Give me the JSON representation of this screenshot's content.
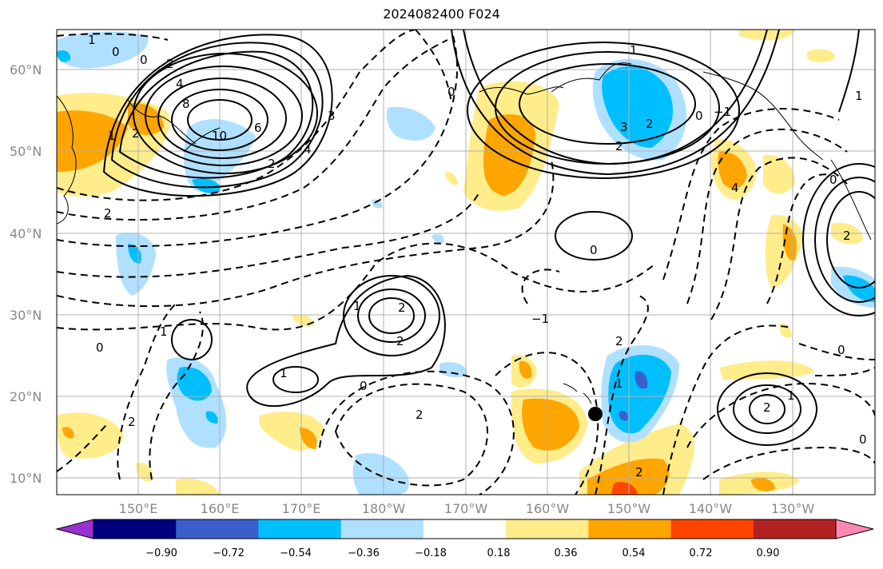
{
  "title": "2024082400 F024",
  "lat_labels": [
    "60°N",
    "50°N",
    "40°N",
    "30°N",
    "20°N",
    "10°N"
  ],
  "lon_labels": [
    "150°E",
    "160°E",
    "170°E",
    "180°W",
    "170°W",
    "160°W",
    "150°W",
    "140°W",
    "130°W"
  ],
  "colorbar": {
    "colors": [
      "#9b30d0",
      "#000080",
      "#3a5fcd",
      "#00bfff",
      "#b0e0ff",
      "#ffffff",
      "#ffec8b",
      "#ffa500",
      "#ff4500",
      "#b22222",
      "#ff88b0"
    ],
    "ticks": [
      "−0.90",
      "−0.72",
      "−0.54",
      "−0.36",
      "−0.18",
      "0.18",
      "0.36",
      "0.54",
      "0.72",
      "0.90"
    ]
  },
  "contour_labels": [
    "1",
    "0",
    "2",
    "4",
    "8",
    "10",
    "6",
    "2",
    "0",
    "1",
    "2",
    "3",
    "4",
    "2",
    "0",
    "2",
    "1",
    "0",
    "−1",
    "2",
    "3",
    "4",
    "0",
    "1",
    "2",
    "0",
    "1",
    "2",
    "0",
    "2",
    "1",
    "2",
    "2",
    "1",
    "0",
    "2",
    "−1",
    "2",
    "1",
    "0",
    "2",
    "0",
    "1"
  ],
  "marker": {
    "name": "Hawaii point"
  }
}
